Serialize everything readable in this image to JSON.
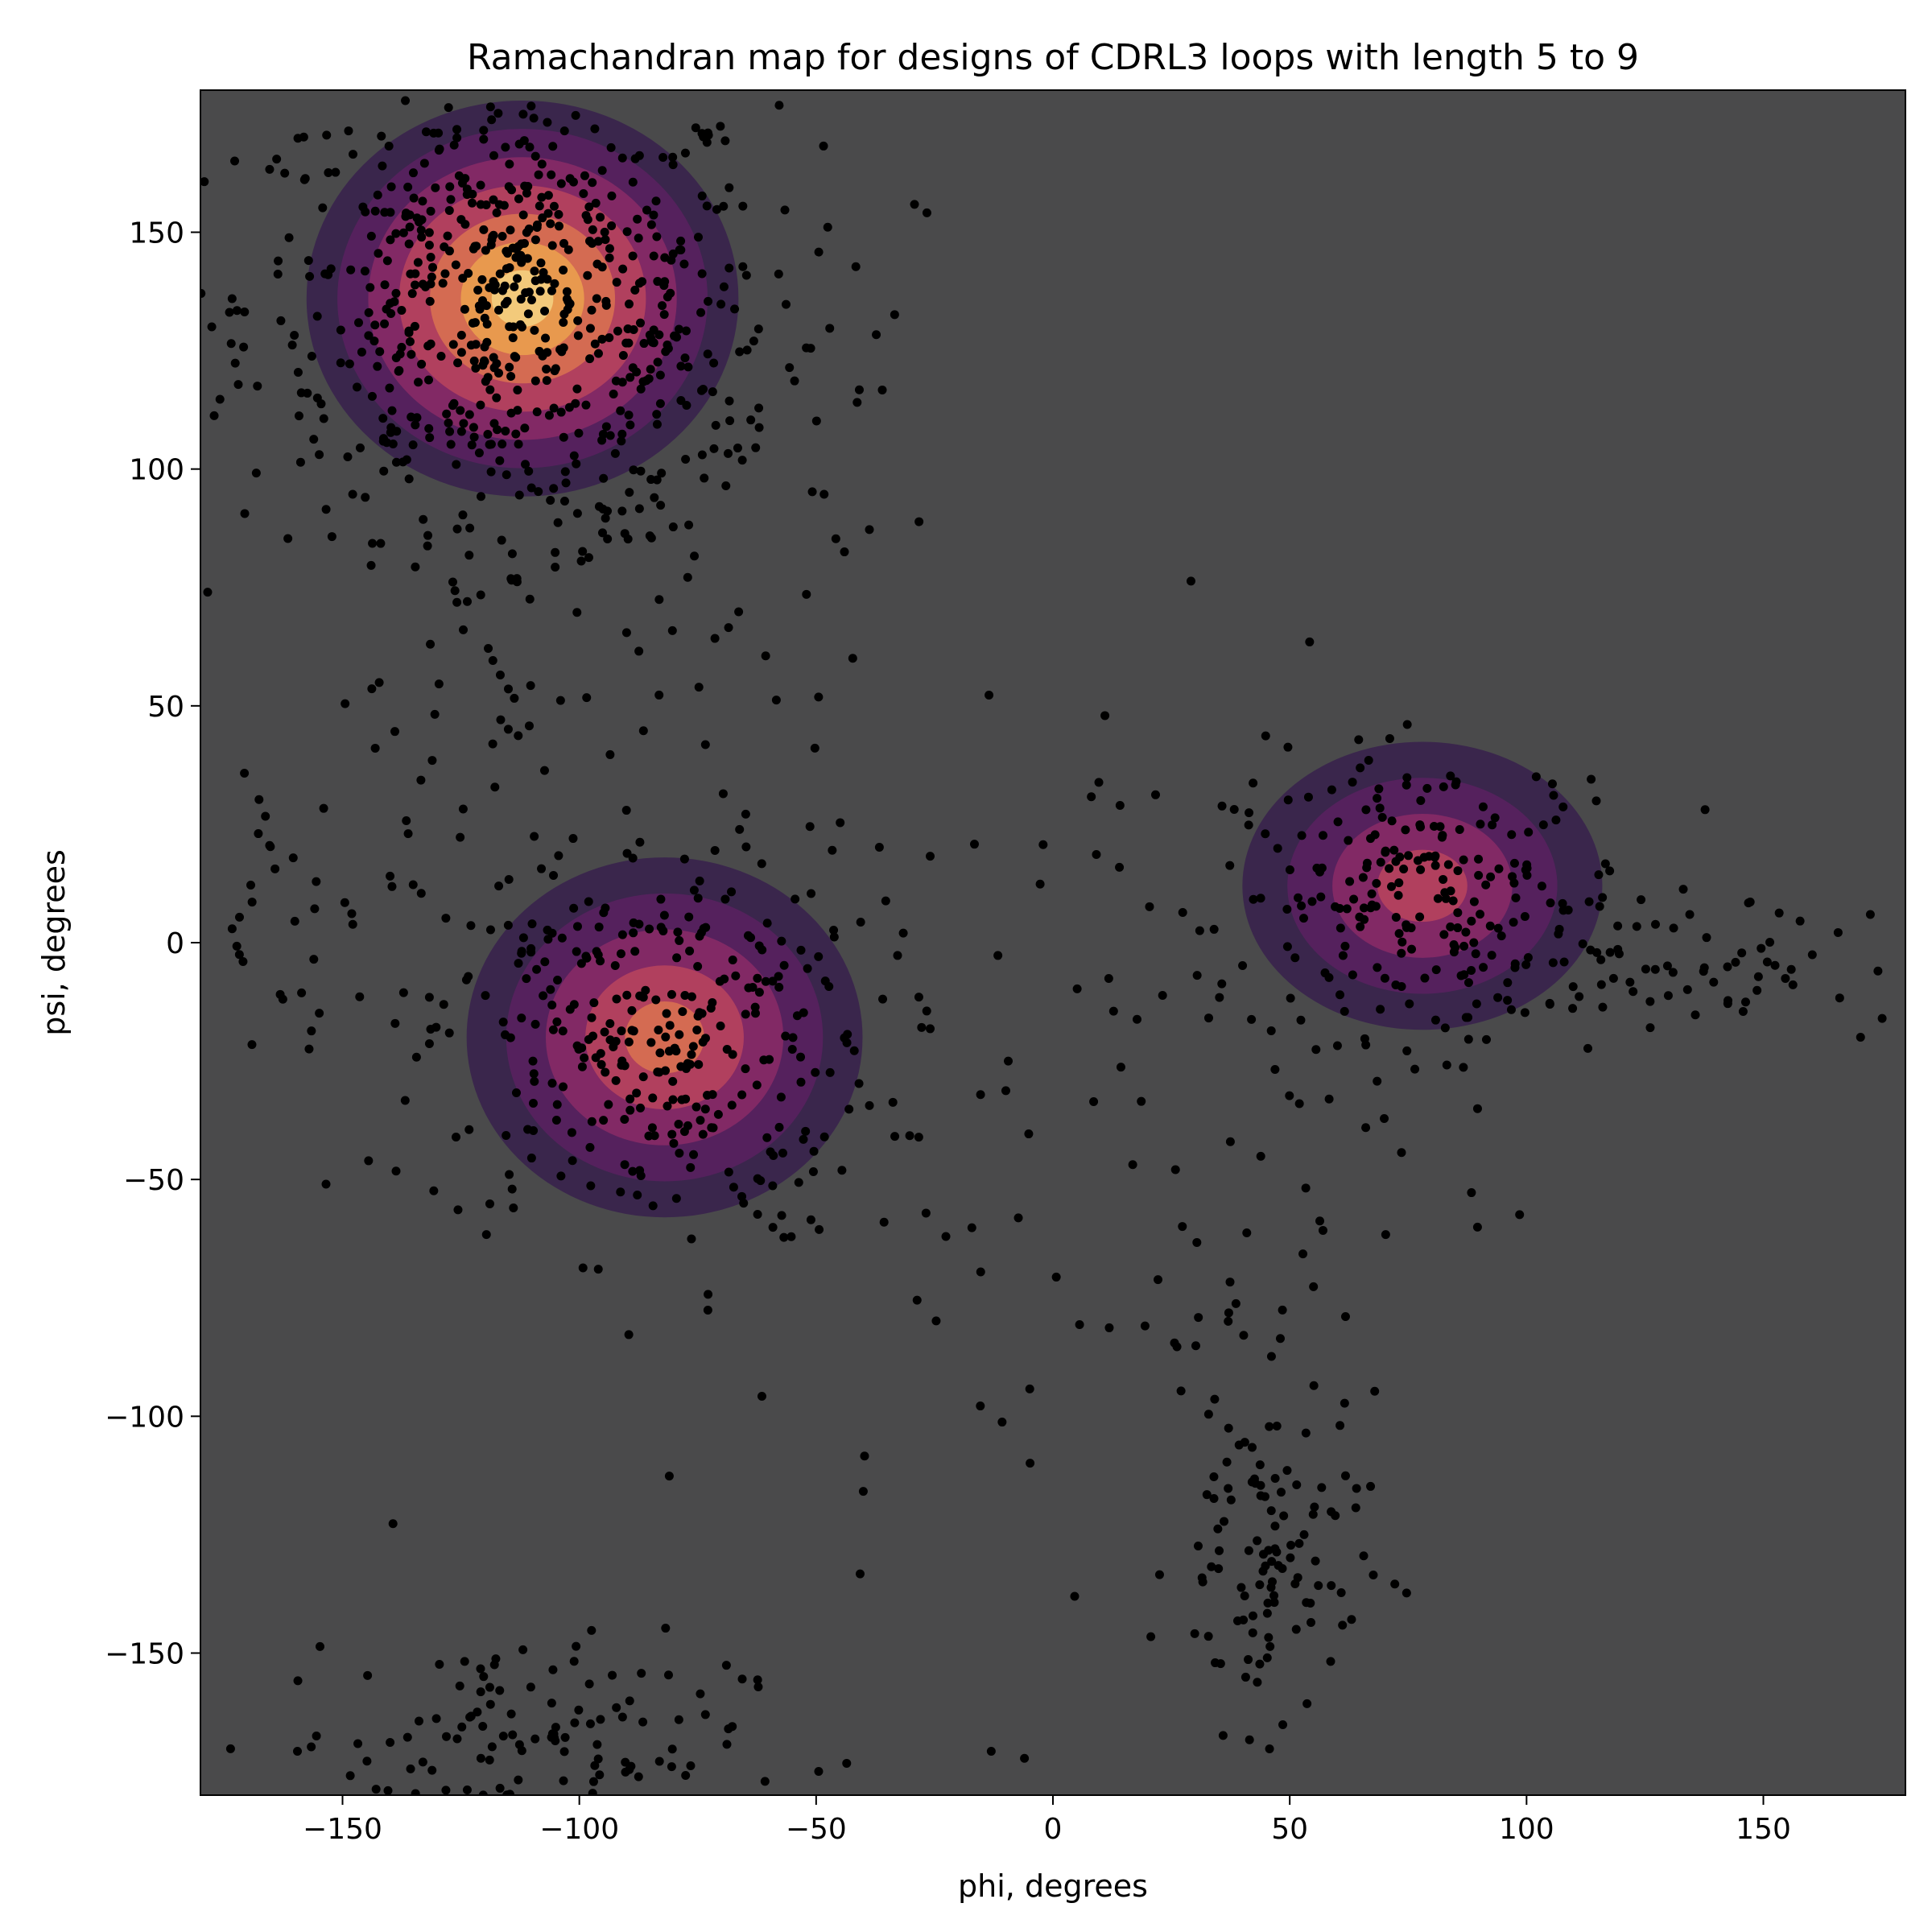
{
  "chart_data": {
    "type": "scatter",
    "title": "Ramachandran map for designs of CDRL3 loops with length 5 to 9",
    "xlabel": "phi, degrees",
    "ylabel": "psi, degrees",
    "xlim": [
      -180,
      180
    ],
    "ylim": [
      -180,
      180
    ],
    "xticks": [
      -150,
      -100,
      -50,
      0,
      50,
      100,
      150
    ],
    "yticks": [
      -150,
      -100,
      -50,
      0,
      50,
      100,
      150
    ],
    "xtick_labels": [
      "−150",
      "−100",
      "−50",
      "0",
      "50",
      "100",
      "150"
    ],
    "ytick_labels": [
      "−150",
      "−100",
      "−50",
      "0",
      "50",
      "100",
      "150"
    ],
    "grid": false,
    "background_color": "#4a4a4b",
    "point_color": "#000000",
    "density_colormap": [
      "#2d0a4e",
      "#6b1d6b",
      "#a8326b",
      "#d9545a",
      "#f08e48",
      "#f7c04a",
      "#fbf3a0"
    ],
    "density_regions": [
      {
        "name": "beta-region",
        "center": [
          -112,
          136
        ],
        "spread": [
          24,
          22
        ],
        "peak": 1.0
      },
      {
        "name": "alpha-right-region",
        "center": [
          -82,
          -20
        ],
        "spread": [
          22,
          20
        ],
        "peak": 0.72
      },
      {
        "name": "left-handed-region",
        "center": [
          78,
          12
        ],
        "spread": [
          20,
          16
        ],
        "peak": 0.5
      }
    ],
    "clusters": [
      {
        "center": [
          -115,
          135
        ],
        "spread": [
          28,
          24
        ],
        "count": 620
      },
      {
        "center": [
          -85,
          -20
        ],
        "spread": [
          24,
          22
        ],
        "count": 320
      },
      {
        "center": [
          80,
          10
        ],
        "spread": [
          22,
          15
        ],
        "count": 220
      },
      {
        "center": [
          -110,
          60
        ],
        "spread": [
          22,
          26
        ],
        "count": 80
      },
      {
        "center": [
          -70,
          110
        ],
        "spread": [
          25,
          20
        ],
        "count": 60
      },
      {
        "center": [
          45,
          -130
        ],
        "spread": [
          10,
          18
        ],
        "count": 110
      },
      {
        "center": [
          -115,
          -170
        ],
        "spread": [
          25,
          12
        ],
        "count": 140
      },
      {
        "center": [
          130,
          -5
        ],
        "spread": [
          30,
          8
        ],
        "count": 80
      },
      {
        "center": [
          10,
          -40
        ],
        "spread": [
          45,
          55
        ],
        "count": 120
      },
      {
        "center": [
          -160,
          0
        ],
        "spread": [
          22,
          20
        ],
        "count": 50
      }
    ]
  }
}
